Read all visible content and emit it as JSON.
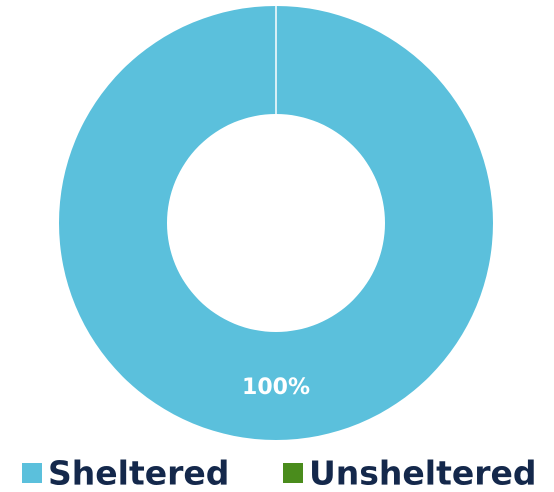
{
  "chart_data": {
    "type": "donut",
    "categories": [
      "Sheltered",
      "Unsheltered"
    ],
    "values": [
      100,
      0
    ],
    "value_labels": [
      "100%",
      null
    ],
    "colors": [
      "#5bc0dc",
      "#4a8c1c"
    ],
    "legend": "bottom"
  }
}
